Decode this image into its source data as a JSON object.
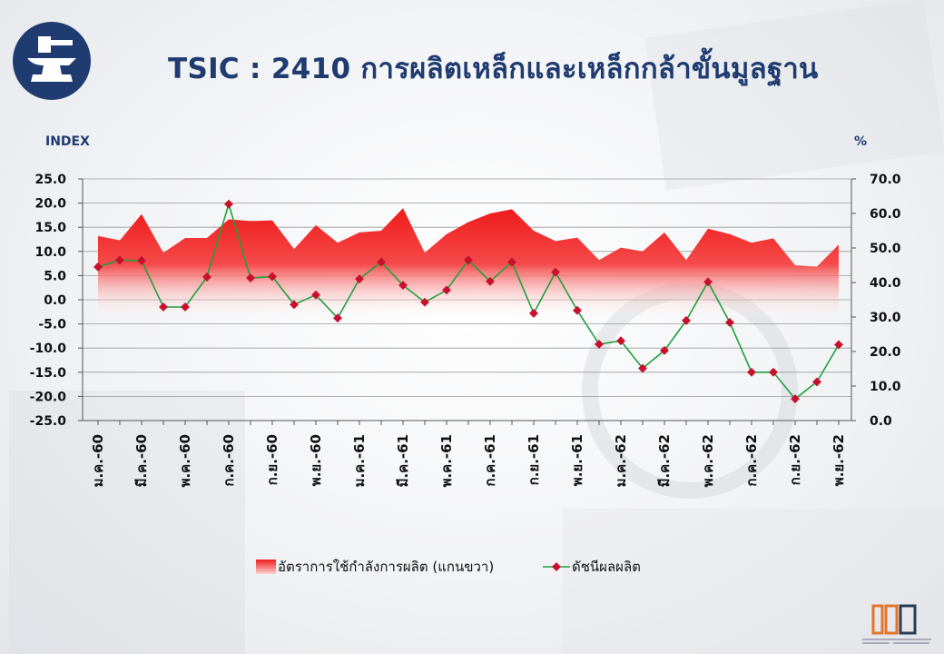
{
  "title": "TSIC : 2410 การผลิตเหล็กและเหล็กกล้าขั้นมูลฐาน",
  "logo_icon": "anvil-hammer-icon",
  "footer_logo": {
    "icon": "oie-logo-icon"
  },
  "chart_data": {
    "type": "line-area-combo",
    "unit_left": "INDEX",
    "unit_right": "%",
    "ylim_left": [
      -25,
      25
    ],
    "ylim_right": [
      0,
      70
    ],
    "yticks_left": [
      "25.0",
      "20.0",
      "15.0",
      "10.0",
      "5.0",
      "0.0",
      "-5.0",
      "-10.0",
      "-15.0",
      "-20.0",
      "-25.0"
    ],
    "yticks_right": [
      "70.0",
      "60.0",
      "50.0",
      "40.0",
      "30.0",
      "20.0",
      "10.0",
      "0.0"
    ],
    "grid": true,
    "legend_position": "bottom",
    "x_tick_labels": [
      "ม.ค.-60",
      "มี.ค.-60",
      "พ.ค.-60",
      "ก.ค.-60",
      "ก.ย.-60",
      "พ.ย.-60",
      "ม.ค.-61",
      "มี.ค.-61",
      "พ.ค.-61",
      "ก.ค.-61",
      "ก.ย.-61",
      "พ.ย.-61",
      "ม.ค.-62",
      "มี.ค.-62",
      "พ.ค.-62",
      "ก.ค.-62",
      "ก.ย.-62",
      "พ.ย.-62"
    ],
    "series": [
      {
        "name": "อัตราการใช้กำลังการผลิต (แกนขวา)",
        "axis": "right",
        "type": "area",
        "color": "#ee1c1c",
        "values": [
          53.5,
          52.2,
          59.8,
          48.6,
          52.9,
          52.9,
          58.3,
          57.8,
          58.0,
          49.7,
          56.6,
          51.5,
          54.5,
          55.0,
          61.5,
          48.6,
          54.0,
          57.5,
          60.0,
          61.2,
          55.0,
          52.0,
          53.0,
          46.5,
          50.1,
          49.0,
          54.5,
          46.5,
          55.6,
          54.0,
          51.5,
          52.8,
          45.0,
          44.6,
          51.0
        ]
      },
      {
        "name": "ดัชนีผลผลิต",
        "axis": "left",
        "type": "line",
        "color": "#1fa03c",
        "marker_color": "#c8102e",
        "values": [
          6.8,
          8.2,
          8.1,
          -1.5,
          -1.5,
          4.7,
          19.8,
          4.5,
          4.8,
          -1.0,
          1.0,
          -3.8,
          4.3,
          7.8,
          3.0,
          -0.5,
          2.0,
          8.2,
          3.8,
          7.8,
          -2.8,
          5.7,
          -2.2,
          -9.2,
          -8.5,
          -14.2,
          -10.5,
          -4.3,
          3.7,
          -4.7,
          -15.0,
          -15.0,
          -20.5,
          -17.0,
          -9.3
        ]
      }
    ]
  }
}
